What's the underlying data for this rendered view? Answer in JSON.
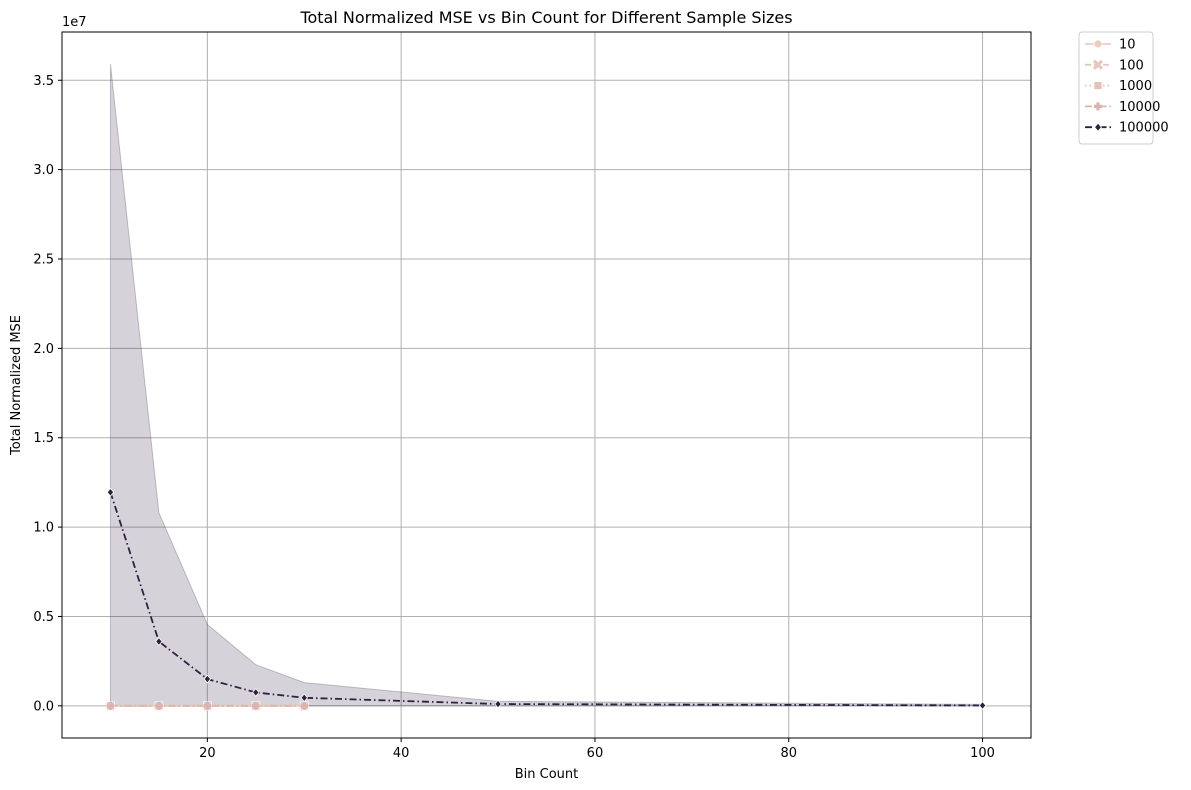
{
  "chart_data": {
    "type": "line",
    "title": "Total Normalized MSE vs Bin Count for Different Sample Sizes",
    "xlabel": "Bin Count",
    "ylabel": "Total Normalized MSE",
    "y_multiplier_label": "1e7",
    "xlim": [
      5,
      105
    ],
    "ylim": [
      -1800000,
      37700000
    ],
    "x_ticks": [
      20,
      40,
      60,
      80,
      100
    ],
    "x_tick_labels": [
      "20",
      "40",
      "60",
      "80",
      "100"
    ],
    "y_ticks": [
      0,
      5000000,
      10000000,
      15000000,
      20000000,
      25000000,
      30000000,
      35000000
    ],
    "y_tick_labels": [
      "0.0",
      "0.5",
      "1.0",
      "1.5",
      "2.0",
      "2.5",
      "3.0",
      "3.5"
    ],
    "grid": true,
    "legend_position": "outside-top-right",
    "x": [
      10,
      15,
      20,
      25,
      30,
      50,
      100
    ],
    "series": [
      {
        "name": "10",
        "color": "#ebcdc0",
        "marker": "circle",
        "dash": "solid",
        "values": [
          0,
          0,
          0,
          0,
          0,
          null,
          null
        ]
      },
      {
        "name": "100",
        "color": "#e8c7bc",
        "marker": "x",
        "dash": "dashed",
        "values": [
          0,
          0,
          0,
          0,
          0,
          null,
          null
        ]
      },
      {
        "name": "1000",
        "color": "#e3c3b8",
        "marker": "square",
        "dash": "dotted",
        "values": [
          0,
          0,
          0,
          0,
          0,
          null,
          null
        ]
      },
      {
        "name": "10000",
        "color": "#ddb1ac",
        "marker": "plus",
        "dash": "dashdot",
        "values": [
          0,
          0,
          0,
          0,
          0,
          null,
          null
        ]
      },
      {
        "name": "100000",
        "color": "#2d2140",
        "marker": "diamond",
        "dash": "dashdot",
        "values": [
          11950000,
          3600000,
          1500000,
          750000,
          450000,
          100000,
          20000
        ],
        "band_upper": [
          35900000,
          10800000,
          4550000,
          2300000,
          1300000,
          250000,
          80000
        ],
        "band_lower": [
          0,
          0,
          0,
          0,
          0,
          0,
          0
        ]
      }
    ]
  }
}
